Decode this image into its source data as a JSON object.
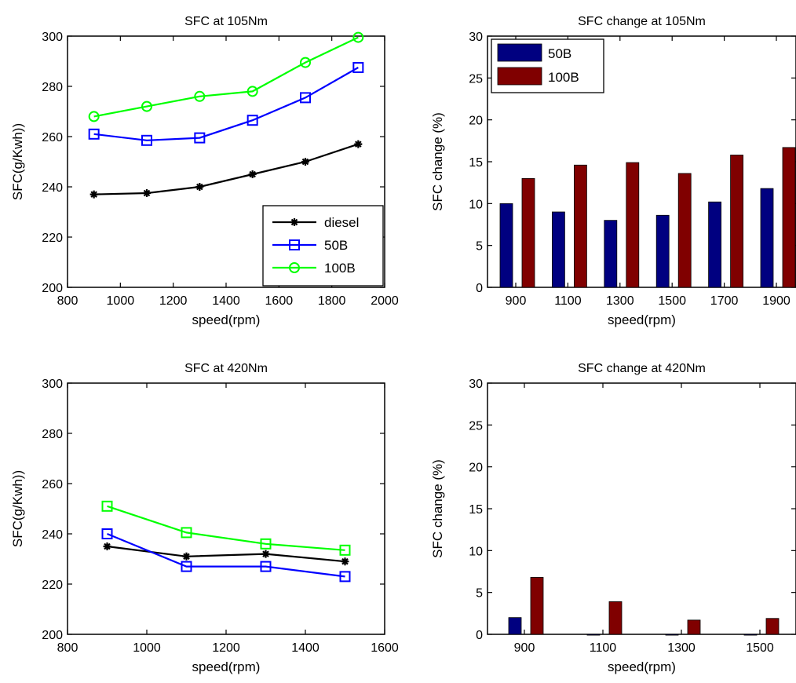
{
  "colors": {
    "diesel": "#000000",
    "50B_line": "#0000ff",
    "100B_line": "#00ff00",
    "50B_bar": "#000080",
    "100B_bar": "#800000",
    "axis": "#000000",
    "background": "#ffffff"
  },
  "chart_data": [
    {
      "id": "p1",
      "type": "line",
      "title": "SFC at 105Nm",
      "xlabel": "speed(rpm)",
      "ylabel": "SFC(g/Kwh))",
      "xlim": [
        800,
        2000
      ],
      "ylim": [
        200,
        300
      ],
      "xticks": [
        800,
        1000,
        1200,
        1400,
        1600,
        1800,
        2000
      ],
      "yticks": [
        200,
        220,
        240,
        260,
        280,
        300
      ],
      "grid": false,
      "legend": "bottom-right",
      "x": [
        900,
        1100,
        1300,
        1500,
        1700,
        1900
      ],
      "series": [
        {
          "name": "diesel",
          "marker": "star",
          "colorKey": "diesel",
          "values": [
            237,
            237.5,
            240,
            245,
            250,
            257
          ]
        },
        {
          "name": "50B",
          "marker": "square",
          "colorKey": "50B_line",
          "values": [
            261,
            258.5,
            259.5,
            266.5,
            275.5,
            287.5
          ]
        },
        {
          "name": "100B",
          "marker": "circle",
          "colorKey": "100B_line",
          "values": [
            268,
            272,
            276,
            278,
            289.5,
            299.5
          ]
        }
      ]
    },
    {
      "id": "p2",
      "type": "bar",
      "title": "SFC change at 105Nm",
      "xlabel": "speed(rpm)",
      "ylabel": "SFC change (%)",
      "ylim": [
        0,
        30
      ],
      "yticks": [
        0,
        5,
        10,
        15,
        20,
        25,
        30
      ],
      "grid": false,
      "legend": "top-left",
      "categories": [
        "900",
        "1100",
        "1300",
        "1500",
        "1700",
        "1900"
      ],
      "series": [
        {
          "name": "50B",
          "colorKey": "50B_bar",
          "values": [
            10,
            9,
            8,
            8.6,
            10.2,
            11.8
          ]
        },
        {
          "name": "100B",
          "colorKey": "100B_bar",
          "values": [
            13,
            14.6,
            14.9,
            13.6,
            15.8,
            16.7
          ]
        }
      ]
    },
    {
      "id": "p3",
      "type": "line",
      "title": "SFC at 420Nm",
      "xlabel": "speed(rpm)",
      "ylabel": "SFC(g/Kwh))",
      "xlim": [
        800,
        1600
      ],
      "ylim": [
        200,
        300
      ],
      "xticks": [
        800,
        1000,
        1200,
        1400,
        1600
      ],
      "yticks": [
        200,
        220,
        240,
        260,
        280,
        300
      ],
      "grid": false,
      "x": [
        900,
        1100,
        1300,
        1500
      ],
      "series": [
        {
          "name": "diesel",
          "marker": "star",
          "colorKey": "diesel",
          "values": [
            235,
            231,
            232,
            229
          ]
        },
        {
          "name": "50B",
          "marker": "square",
          "colorKey": "50B_line",
          "values": [
            240,
            227,
            227,
            223
          ]
        },
        {
          "name": "100B",
          "marker": "square",
          "colorKey": "100B_line",
          "values": [
            251,
            240.5,
            236,
            233.5
          ]
        }
      ]
    },
    {
      "id": "p4",
      "type": "bar",
      "title": "SFC change at 420Nm",
      "xlabel": "speed(rpm)",
      "ylabel": "SFC change (%)",
      "ylim": [
        0,
        30
      ],
      "yticks": [
        0,
        5,
        10,
        15,
        20,
        25,
        30
      ],
      "grid": false,
      "categories": [
        "900",
        "1100",
        "1300",
        "1500"
      ],
      "series": [
        {
          "name": "50B",
          "colorKey": "50B_bar",
          "values": [
            2,
            -0.1,
            -0.1,
            -0.1
          ]
        },
        {
          "name": "100B",
          "colorKey": "100B_bar",
          "values": [
            6.8,
            3.9,
            1.7,
            1.9
          ]
        }
      ]
    }
  ]
}
